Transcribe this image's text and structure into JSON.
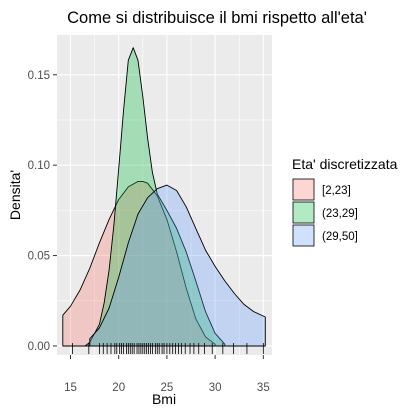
{
  "chart_data": {
    "type": "area",
    "title": "Come si distribuisce il bmi rispetto all'eta'",
    "xlabel": "Bmi",
    "ylabel": "Densita'",
    "xlim": [
      13.6,
      35.9
    ],
    "ylim": [
      -0.005,
      0.172
    ],
    "x_ticks": [
      15,
      20,
      25,
      30,
      35
    ],
    "y_ticks": [
      0.0,
      0.05,
      0.1,
      0.15
    ],
    "y_tick_labels": [
      "0.00",
      "0.05",
      "0.10",
      "0.15"
    ],
    "grid": true,
    "legend": {
      "title": "Eta' discretizzata",
      "position": "right"
    },
    "series": [
      {
        "name": "[2,23]",
        "fill": "#F8766D",
        "x": [
          14.2,
          15,
          16,
          17,
          18,
          19,
          20,
          21,
          22,
          22.5,
          23,
          24,
          25,
          26,
          27,
          28,
          29,
          30
        ],
        "values": [
          0.017,
          0.022,
          0.031,
          0.043,
          0.057,
          0.07,
          0.081,
          0.088,
          0.091,
          0.091,
          0.09,
          0.083,
          0.07,
          0.052,
          0.032,
          0.015,
          0.005,
          0.001
        ]
      },
      {
        "name": "(23,29]",
        "fill": "#00BA38",
        "x": [
          16.5,
          17,
          18,
          18.5,
          19,
          19.5,
          20,
          20.5,
          21,
          21.5,
          22,
          22.5,
          23,
          23.5,
          24,
          25,
          26,
          27,
          28,
          29,
          30,
          31
        ],
        "values": [
          0.0,
          0.002,
          0.012,
          0.024,
          0.042,
          0.067,
          0.098,
          0.13,
          0.158,
          0.165,
          0.158,
          0.138,
          0.115,
          0.096,
          0.084,
          0.075,
          0.065,
          0.052,
          0.036,
          0.019,
          0.007,
          0.001
        ]
      },
      {
        "name": "(29,50]",
        "fill": "#619CFF",
        "x": [
          17,
          18,
          19,
          20,
          21,
          22,
          23,
          24,
          25,
          26,
          27,
          28,
          29,
          30,
          31,
          32,
          33,
          34,
          35.2
        ],
        "values": [
          0.004,
          0.01,
          0.021,
          0.038,
          0.057,
          0.073,
          0.082,
          0.087,
          0.089,
          0.086,
          0.077,
          0.065,
          0.053,
          0.044,
          0.036,
          0.029,
          0.023,
          0.019,
          0.016
        ]
      }
    ],
    "rug_x": [
      15.2,
      16.9,
      18.0,
      18.4,
      18.8,
      19.2,
      19.6,
      19.8,
      20.1,
      20.3,
      20.5,
      20.8,
      21.0,
      21.2,
      21.4,
      21.6,
      21.9,
      22.1,
      22.3,
      22.5,
      22.7,
      22.9,
      23.1,
      23.3,
      23.5,
      23.8,
      24.0,
      24.2,
      24.5,
      24.7,
      25.0,
      25.3,
      25.6,
      25.9,
      26.2,
      26.5,
      26.9,
      27.4,
      27.8,
      28.3,
      28.9,
      29.7,
      30.8,
      31.9,
      33.3,
      35.0
    ]
  }
}
